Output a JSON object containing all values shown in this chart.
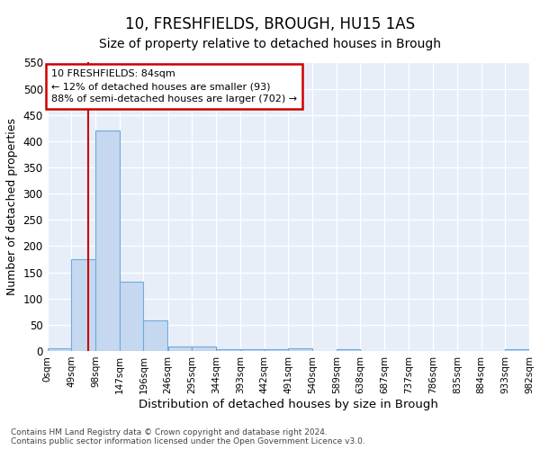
{
  "title": "10, FRESHFIELDS, BROUGH, HU15 1AS",
  "subtitle": "Size of property relative to detached houses in Brough",
  "xlabel": "Distribution of detached houses by size in Brough",
  "ylabel": "Number of detached properties",
  "footnote1": "Contains HM Land Registry data © Crown copyright and database right 2024.",
  "footnote2": "Contains public sector information licensed under the Open Government Licence v3.0.",
  "bin_labels": [
    "0sqm",
    "49sqm",
    "98sqm",
    "147sqm",
    "196sqm",
    "246sqm",
    "295sqm",
    "344sqm",
    "393sqm",
    "442sqm",
    "491sqm",
    "540sqm",
    "589sqm",
    "638sqm",
    "687sqm",
    "737sqm",
    "786sqm",
    "835sqm",
    "884sqm",
    "933sqm",
    "982sqm"
  ],
  "bar_values": [
    5,
    175,
    420,
    132,
    59,
    8,
    8,
    3,
    3,
    3,
    5,
    0,
    4,
    0,
    0,
    0,
    0,
    0,
    0,
    3
  ],
  "bin_edges": [
    0,
    49,
    98,
    147,
    196,
    246,
    295,
    344,
    393,
    442,
    491,
    540,
    589,
    638,
    687,
    737,
    786,
    835,
    884,
    933,
    982
  ],
  "bar_color": "#c5d8f0",
  "bar_edge_color": "#6aabe0",
  "red_line_x": 84,
  "annotation_text": "10 FRESHFIELDS: 84sqm\n← 12% of detached houses are smaller (93)\n88% of semi-detached houses are larger (702) →",
  "annotation_box_color": "#ffffff",
  "annotation_box_edge": "#cc0000",
  "red_line_color": "#cc0000",
  "ylim": [
    0,
    550
  ],
  "yticks": [
    0,
    50,
    100,
    150,
    200,
    250,
    300,
    350,
    400,
    450,
    500,
    550
  ],
  "bg_color": "#e8eef8",
  "title_fontsize": 12,
  "subtitle_fontsize": 10,
  "footnote_fontsize": 6.5,
  "ylabel_fontsize": 9,
  "xlabel_fontsize": 9.5
}
